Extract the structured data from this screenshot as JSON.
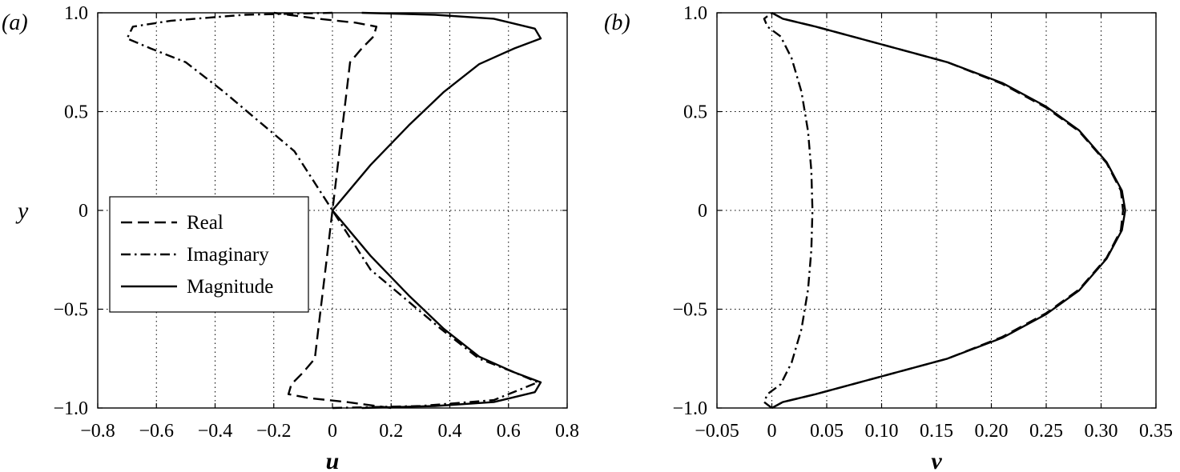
{
  "chart_data": [
    {
      "type": "line",
      "panel_label": "(a)",
      "xlabel": "u",
      "ylabel": "y",
      "xlim": [
        -0.8,
        0.8
      ],
      "ylim": [
        -1.0,
        1.0
      ],
      "xticks": [
        -0.8,
        -0.6,
        -0.4,
        -0.2,
        0,
        0.2,
        0.4,
        0.6,
        0.8
      ],
      "xtick_labels": [
        "−0.8",
        "−0.6",
        "−0.4",
        "−0.2",
        "0",
        "0.2",
        "0.4",
        "0.6",
        "0.8"
      ],
      "yticks": [
        -1.0,
        -0.5,
        0,
        0.5,
        1.0
      ],
      "ytick_labels": [
        "−1.0",
        "−0.5",
        "0",
        "0.5",
        "1.0"
      ],
      "grid": true,
      "legend_position": "middle-left",
      "series": [
        {
          "name": "Real",
          "style": "dashed",
          "points": [
            [
              0.2,
              -1.0
            ],
            [
              0.15,
              -0.99
            ],
            [
              0.05,
              -0.97
            ],
            [
              -0.08,
              -0.95
            ],
            [
              -0.15,
              -0.93
            ],
            [
              -0.14,
              -0.88
            ],
            [
              -0.1,
              -0.82
            ],
            [
              -0.06,
              -0.75
            ],
            [
              -0.04,
              -0.5
            ],
            [
              -0.02,
              -0.25
            ],
            [
              0,
              0
            ],
            [
              0.02,
              0.25
            ],
            [
              0.04,
              0.5
            ],
            [
              0.06,
              0.75
            ],
            [
              0.1,
              0.82
            ],
            [
              0.14,
              0.88
            ],
            [
              0.15,
              0.93
            ],
            [
              0.08,
              0.95
            ],
            [
              -0.05,
              0.97
            ],
            [
              -0.15,
              0.99
            ],
            [
              -0.2,
              1.0
            ]
          ]
        },
        {
          "name": "Imaginary",
          "style": "dash-dot",
          "points": [
            [
              0,
              -1.0
            ],
            [
              0.3,
              -0.99
            ],
            [
              0.55,
              -0.96
            ],
            [
              0.7,
              -0.87
            ],
            [
              0.62,
              -0.82
            ],
            [
              0.5,
              -0.75
            ],
            [
              0.37,
              -0.6
            ],
            [
              0.25,
              -0.45
            ],
            [
              0.13,
              -0.3
            ],
            [
              0,
              0
            ],
            [
              -0.13,
              0.3
            ],
            [
              -0.25,
              0.45
            ],
            [
              -0.37,
              0.6
            ],
            [
              -0.5,
              0.75
            ],
            [
              -0.62,
              0.82
            ],
            [
              -0.7,
              0.87
            ],
            [
              -0.68,
              0.93
            ],
            [
              -0.55,
              0.96
            ],
            [
              -0.3,
              0.99
            ],
            [
              0,
              1.0
            ]
          ]
        },
        {
          "name": "Magnitude",
          "style": "solid",
          "points": [
            [
              0.1,
              -1.0
            ],
            [
              0.35,
              -0.99
            ],
            [
              0.55,
              -0.97
            ],
            [
              0.69,
              -0.92
            ],
            [
              0.71,
              -0.87
            ],
            [
              0.62,
              -0.82
            ],
            [
              0.5,
              -0.74
            ],
            [
              0.38,
              -0.6
            ],
            [
              0.26,
              -0.43
            ],
            [
              0.13,
              -0.23
            ],
            [
              0,
              0
            ],
            [
              0.13,
              0.23
            ],
            [
              0.26,
              0.43
            ],
            [
              0.38,
              0.6
            ],
            [
              0.5,
              0.74
            ],
            [
              0.62,
              0.82
            ],
            [
              0.71,
              0.87
            ],
            [
              0.69,
              0.92
            ],
            [
              0.55,
              0.97
            ],
            [
              0.35,
              0.99
            ],
            [
              0.1,
              1.0
            ]
          ]
        }
      ]
    },
    {
      "type": "line",
      "panel_label": "(b)",
      "xlabel": "v",
      "ylabel": "",
      "xlim": [
        -0.05,
        0.35
      ],
      "ylim": [
        -1.0,
        1.0
      ],
      "xticks": [
        -0.05,
        0,
        0.05,
        0.1,
        0.15,
        0.2,
        0.25,
        0.3,
        0.35
      ],
      "xtick_labels": [
        "−0.05",
        "0",
        "0.05",
        "0.10",
        "0.15",
        "0.20",
        "0.25",
        "0.30",
        "0.35"
      ],
      "yticks": [
        -1.0,
        -0.5,
        0,
        0.5,
        1.0
      ],
      "ytick_labels": [
        "−1.0",
        "−0.5",
        "0",
        "0.5",
        "1.0"
      ],
      "grid": true,
      "series": [
        {
          "style": "dashed",
          "points": [
            [
              0,
              -1.0
            ],
            [
              0.01,
              -0.97
            ],
            [
              0.04,
              -0.93
            ],
            [
              0.1,
              -0.84
            ],
            [
              0.16,
              -0.75
            ],
            [
              0.21,
              -0.64
            ],
            [
              0.25,
              -0.52
            ],
            [
              0.28,
              -0.4
            ],
            [
              0.305,
              -0.24
            ],
            [
              0.318,
              -0.1
            ],
            [
              0.32,
              0
            ],
            [
              0.318,
              0.1
            ],
            [
              0.305,
              0.24
            ],
            [
              0.28,
              0.4
            ],
            [
              0.25,
              0.52
            ],
            [
              0.21,
              0.64
            ],
            [
              0.16,
              0.75
            ],
            [
              0.1,
              0.84
            ],
            [
              0.04,
              0.93
            ],
            [
              0.01,
              0.97
            ],
            [
              0,
              1.0
            ]
          ]
        },
        {
          "style": "dash-dot",
          "points": [
            [
              0.0,
              -1.0
            ],
            [
              -0.007,
              -0.97
            ],
            [
              -0.004,
              -0.93
            ],
            [
              0.008,
              -0.88
            ],
            [
              0.018,
              -0.77
            ],
            [
              0.027,
              -0.6
            ],
            [
              0.033,
              -0.4
            ],
            [
              0.036,
              -0.2
            ],
            [
              0.037,
              0
            ],
            [
              0.036,
              0.2
            ],
            [
              0.033,
              0.4
            ],
            [
              0.027,
              0.6
            ],
            [
              0.018,
              0.77
            ],
            [
              0.008,
              0.88
            ],
            [
              -0.004,
              0.93
            ],
            [
              -0.007,
              0.97
            ],
            [
              0.0,
              1.0
            ]
          ]
        },
        {
          "style": "solid",
          "points": [
            [
              0,
              -1.0
            ],
            [
              0.01,
              -0.97
            ],
            [
              0.04,
              -0.93
            ],
            [
              0.1,
              -0.84
            ],
            [
              0.16,
              -0.75
            ],
            [
              0.21,
              -0.645
            ],
            [
              0.25,
              -0.525
            ],
            [
              0.28,
              -0.405
            ],
            [
              0.305,
              -0.245
            ],
            [
              0.319,
              -0.1
            ],
            [
              0.322,
              0
            ],
            [
              0.319,
              0.1
            ],
            [
              0.305,
              0.245
            ],
            [
              0.28,
              0.405
            ],
            [
              0.25,
              0.525
            ],
            [
              0.21,
              0.645
            ],
            [
              0.16,
              0.75
            ],
            [
              0.1,
              0.84
            ],
            [
              0.04,
              0.93
            ],
            [
              0.01,
              0.97
            ],
            [
              0,
              1.0
            ]
          ]
        }
      ]
    }
  ]
}
